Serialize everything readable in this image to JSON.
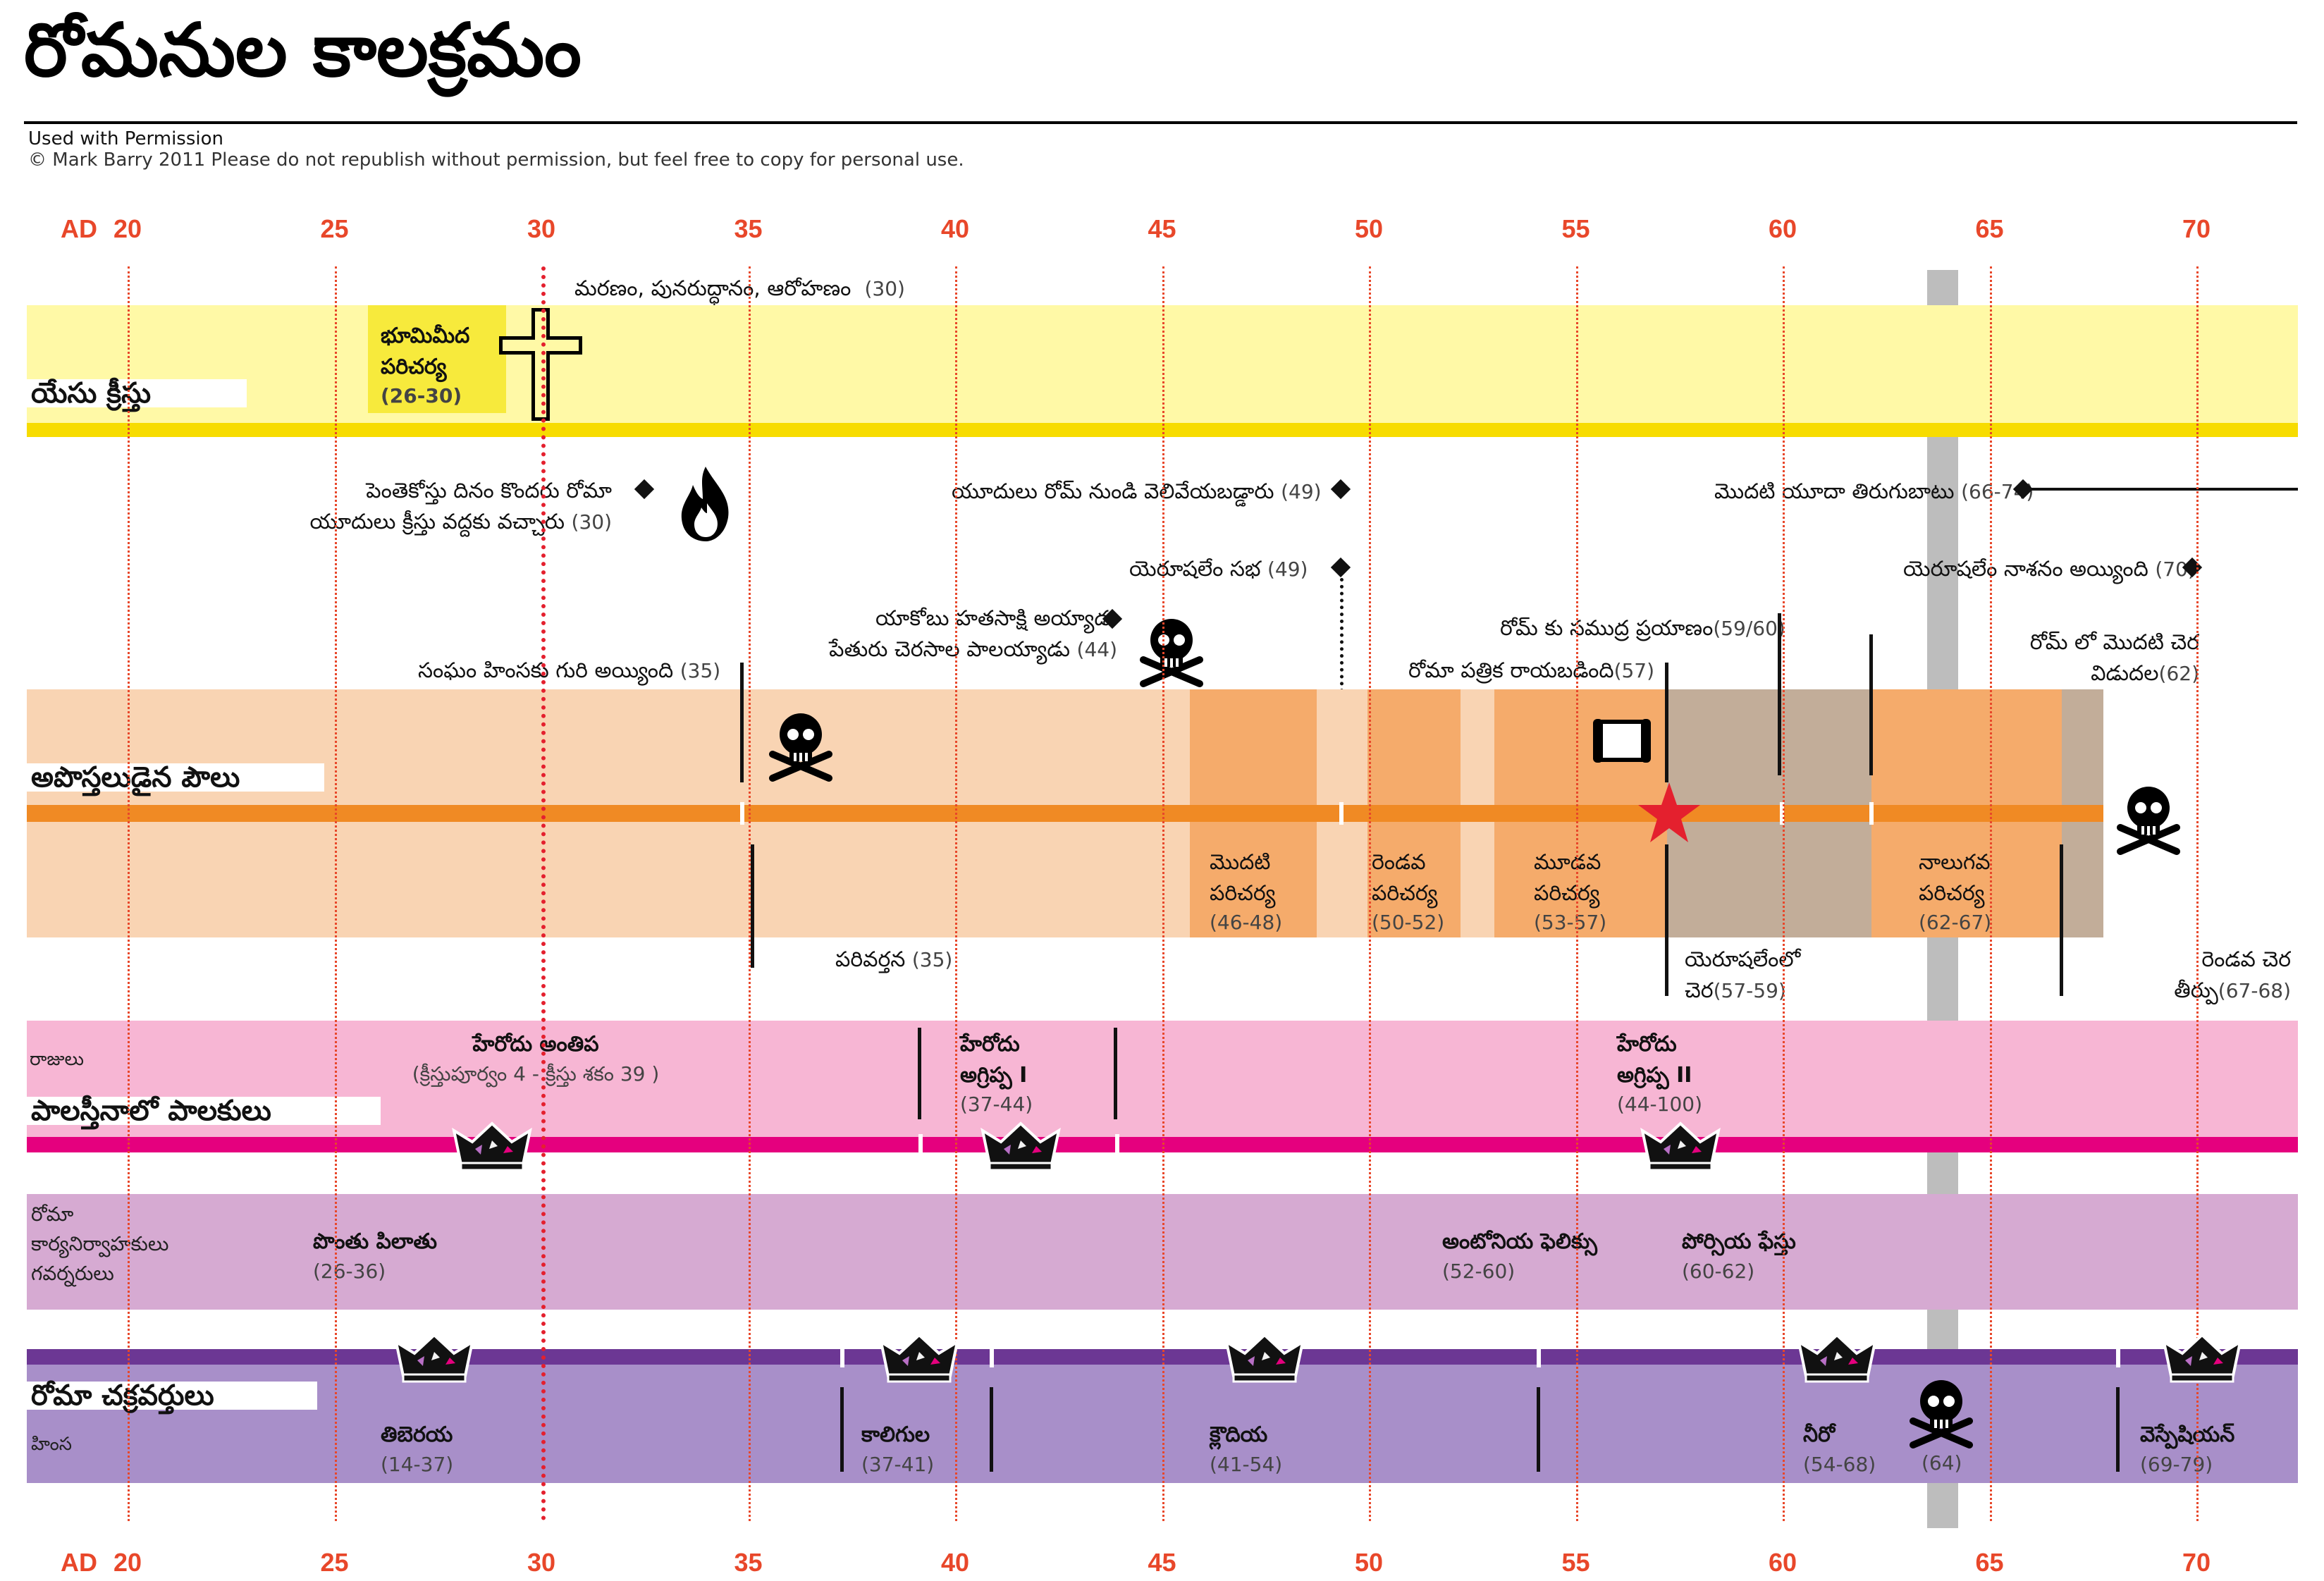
{
  "title": "రోమనుల కాలక్రమం",
  "credit": {
    "line1": "Used with Permission",
    "line2": "© Mark Barry 2011  Please do not republish without permission, but feel free to copy for personal use."
  },
  "axis": {
    "era": "AD",
    "ticks": [
      "20",
      "25",
      "30",
      "35",
      "40",
      "45",
      "50",
      "55",
      "60",
      "65",
      "70"
    ]
  },
  "colors": {
    "axis_red": "#e8472a",
    "jesus_band": "#fff9a6",
    "jesus_line": "#f7dc00",
    "paul_band": "#f9d4b3",
    "paul_line": "#f08a24",
    "journey": "#f5ab6b",
    "rome": "#c2ad99",
    "kings_band": "#f7b6d4",
    "kings_line": "#e5007e",
    "gov_band": "#d6aad2",
    "emp_band": "#a88fc9",
    "emp_line": "#6c3794",
    "fall_bar": "#bdbdbd"
  },
  "jesus": {
    "row_title": "యేసు క్రీస్తు",
    "ministry": "భూమిమీద\nపరిచర్య",
    "ministry_years": "(26-30)",
    "death": "మరణం, పునరుద్ధానం, ఆరోహణం",
    "death_years": "(30)",
    "icon": "cross-icon"
  },
  "events": {
    "pentecost": "పెంతెకోస్తు దినం కొందరు రోమా\nయూదులు క్రీస్తు వద్దకు వచ్చారు",
    "pentecost_years": "(30)",
    "expelled": "యూదులు రోమ్ నుండి వెలివేయబడ్డారు",
    "expelled_years": "(49)",
    "revolt": "మొదటి యూదా తిరుగుబాటు",
    "revolt_years": "(66-74)",
    "council": "యెరూషలేం సభ",
    "council_years": "(49)",
    "destroyed": "యెరూషలేం నాశనం అయ్యింది",
    "destroyed_years": "(70)",
    "james": "యాకోబు హతసాక్షి అయ్యాడు\nపేతురు చెరసాల పాలయ్యాడు",
    "james_years": "(44)",
    "persecuted": "సంఘం హింసకు గురి అయ్యింది",
    "persecuted_years": "(35)",
    "voyage": "రోమ్ కు సముద్ర ప్రయాణం",
    "voyage_years": "(59/60)",
    "letter": "రోమా పత్రిక రాయబడింది",
    "letter_years": "(57)",
    "first_prison": "రోమ్ లో మొదటి చెర\nవిడుదల",
    "first_prison_years": "(62)"
  },
  "paul": {
    "row_title": "అపొస్తలుడైన పౌలు",
    "journeys": [
      {
        "label": "మొదటి\nపరిచర్య",
        "years": "(46-48)"
      },
      {
        "label": "రెండవ\nపరిచర్య",
        "years": "(50-52)"
      },
      {
        "label": "మూడవ\nపరిచర్య",
        "years": "(53-57)"
      },
      {
        "label": "నాలుగవ\nపరిచర్య",
        "years": "(62-67)"
      }
    ],
    "conversion": "పరివర్తన",
    "conversion_years": "(35)",
    "jerusalem_prison": "యెరూషలేంలో\nచెర",
    "jerusalem_prison_years": "(57-59)",
    "second_prison": "రెండవ చెర\nతీర్పు",
    "second_prison_years": "(67-68)"
  },
  "kings": {
    "row_small": "రాజులు",
    "row_title": "పాలస్తీనాలో పాలకులు",
    "items": [
      {
        "label": "హేరోదు అంతిప",
        "years": "(క్రీస్తుపూర్వం 4 - క్రీస్తు శకం 39 )"
      },
      {
        "label": "హేరోదు\nఅగ్రిప్ప I",
        "years": "(37-44)"
      },
      {
        "label": "హేరోదు\nఅగ్రిప్ప II",
        "years": "(44-100)"
      }
    ]
  },
  "governors": {
    "row_small": "రోమా\nకార్యనిర్వాహకులు\nగవర్నరులు",
    "items": [
      {
        "label": "పొంతు పిలాతు",
        "years": "(26-36)"
      },
      {
        "label": "అంటోనియ ఫెలిక్సు",
        "years": "(52-60)"
      },
      {
        "label": "పోర్సియ ఫేస్తు",
        "years": "(60-62)"
      }
    ]
  },
  "emperors": {
    "row_title": "రోమా చక్రవర్తులు",
    "row_small": "హింస",
    "items": [
      {
        "label": "తిబెరయ",
        "years": "(14-37)"
      },
      {
        "label": "కాలిగుల",
        "years": "(37-41)"
      },
      {
        "label": "క్లౌదియ",
        "years": "(41-54)"
      },
      {
        "label": "నీరో",
        "years": "(54-68)"
      },
      {
        "label": "వెస్పేషియన్",
        "years": "(69-79)"
      }
    ],
    "persecution_years": "(64)"
  }
}
